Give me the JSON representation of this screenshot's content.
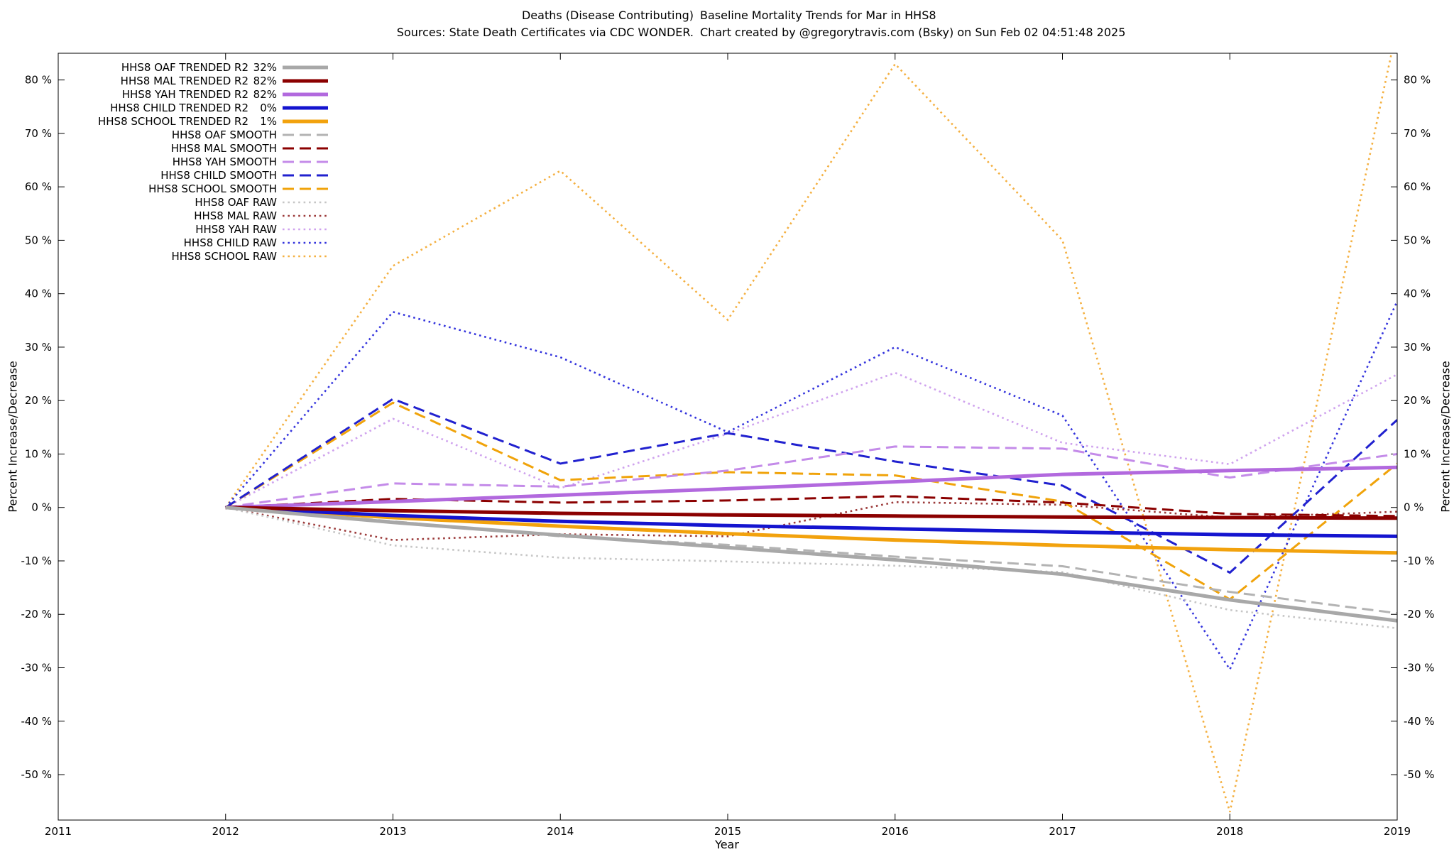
{
  "header": {
    "title_left": "Deaths (Disease Contributing)",
    "title_right": "Baseline Mortality Trends for Mar in HHS8",
    "source_left": "Sources: State Death Certificates via CDC WONDER.",
    "credit_right": "Chart created by @gregorytravis.com (Bsky) on Sun Feb 02 04:51:48 2025"
  },
  "chart_data": {
    "type": "line",
    "title": "Deaths (Disease Contributing)  Baseline Mortality Trends for Mar in HHS8",
    "xlabel": "Year",
    "ylabel_left": "Percent Increase/Decrease",
    "ylabel_right": "Percent Increase/Decrease",
    "xlim": [
      2011,
      2019
    ],
    "ylim": [
      -58.5,
      85
    ],
    "xticks": [
      2011,
      2012,
      2013,
      2014,
      2015,
      2016,
      2017,
      2018,
      2019
    ],
    "yticks": [
      -50,
      -40,
      -30,
      -20,
      -10,
      0,
      10,
      20,
      30,
      40,
      50,
      60,
      70,
      80
    ],
    "ytick_suffix": " %",
    "grid": false,
    "legend_position": "top-left",
    "x": [
      2012,
      2013,
      2014,
      2015,
      2016,
      2017,
      2018,
      2019
    ],
    "series": [
      {
        "label": "HHS8 OAF TRENDED R2",
        "r2": "32%",
        "color": "#a8a8a8",
        "style": "solid",
        "values": [
          0,
          -2.8,
          -5.2,
          -7.5,
          -9.8,
          -12.5,
          -17.3,
          -21.2
        ]
      },
      {
        "label": "HHS8 MAL TRENDED R2",
        "r2": "82%",
        "color": "#8b0000",
        "style": "solid",
        "values": [
          0,
          -0.6,
          -1.1,
          -1.4,
          -1.6,
          -1.8,
          -1.9,
          -2.0
        ]
      },
      {
        "label": "HHS8 YAH TRENDED R2",
        "r2": "82%",
        "color": "#b269de",
        "style": "solid",
        "values": [
          0,
          1.1,
          2.3,
          3.5,
          4.8,
          6.2,
          6.9,
          7.5
        ]
      },
      {
        "label": "HHS8 CHILD TRENDED R2",
        "r2": "0%",
        "color": "#1414cf",
        "style": "solid",
        "values": [
          0,
          -1.5,
          -2.6,
          -3.4,
          -4.0,
          -4.6,
          -5.1,
          -5.4
        ]
      },
      {
        "label": "HHS8 SCHOOL TRENDED R2",
        "r2": "1%",
        "color": "#f2a20d",
        "style": "solid",
        "values": [
          0,
          -1.9,
          -3.5,
          -4.9,
          -6.1,
          -7.1,
          -7.9,
          -8.5
        ]
      },
      {
        "label": "HHS8 OAF SMOOTH",
        "color": "#b3b3b3",
        "style": "dashed",
        "values": [
          0,
          -2.6,
          -5.4,
          -7.0,
          -9.2,
          -11.0,
          -15.8,
          -19.8
        ]
      },
      {
        "label": "HHS8 MAL SMOOTH",
        "color": "#8b0000",
        "style": "dashed",
        "values": [
          0,
          1.6,
          0.9,
          1.3,
          2.1,
          0.9,
          -1.2,
          -1.6
        ]
      },
      {
        "label": "HHS8 YAH SMOOTH",
        "color": "#c48be9",
        "style": "dashed",
        "values": [
          0,
          4.5,
          3.9,
          6.9,
          11.4,
          11.0,
          5.6,
          10.0
        ]
      },
      {
        "label": "HHS8 CHILD SMOOTH",
        "color": "#2121cf",
        "style": "dashed",
        "values": [
          0,
          20.3,
          8.2,
          13.9,
          8.6,
          4.1,
          -12.2,
          16.4
        ]
      },
      {
        "label": "HHS8 SCHOOL SMOOTH",
        "color": "#f0a30a",
        "style": "dashed",
        "values": [
          0,
          19.6,
          5.1,
          6.6,
          6.0,
          1.1,
          -17.2,
          8.2
        ]
      },
      {
        "label": "HHS8 OAF RAW",
        "color": "#c6c6c6",
        "style": "dotted",
        "values": [
          0,
          -7.1,
          -9.4,
          -10.1,
          -10.9,
          -12.1,
          -19.2,
          -22.6
        ]
      },
      {
        "label": "HHS8 MAL RAW",
        "color": "#9c3b3b",
        "style": "dotted",
        "values": [
          0,
          -6.1,
          -5.0,
          -5.4,
          1.0,
          0.5,
          -1.9,
          -0.8
        ]
      },
      {
        "label": "HHS8 YAH RAW",
        "color": "#cfa2ee",
        "style": "dotted",
        "values": [
          0,
          16.6,
          3.6,
          13.8,
          25.2,
          12.1,
          8.1,
          24.9
        ]
      },
      {
        "label": "HHS8 CHILD RAW",
        "color": "#3333dd",
        "style": "dotted",
        "values": [
          0,
          36.6,
          28.1,
          14.1,
          30.0,
          17.2,
          -30.3,
          38.6
        ]
      },
      {
        "label": "HHS8 SCHOOL RAW",
        "color": "#f4b041",
        "style": "dotted",
        "values": [
          0,
          45.2,
          63.0,
          35.1,
          83.0,
          50.0,
          -57.0,
          90.0
        ]
      }
    ]
  }
}
